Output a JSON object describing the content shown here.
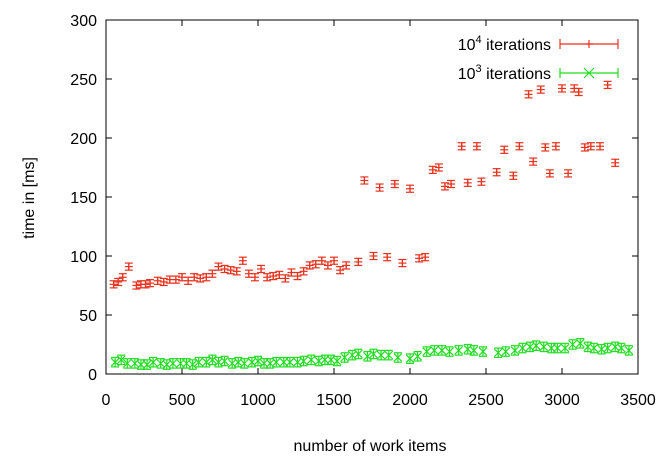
{
  "chart_data": {
    "type": "scatter",
    "xlabel": "number of work items",
    "ylabel": "time in [ms]",
    "xlim": [
      0,
      3500
    ],
    "ylim": [
      0,
      300
    ],
    "xticks": [
      0,
      500,
      1000,
      1500,
      2000,
      2500,
      3000,
      3500
    ],
    "yticks": [
      0,
      50,
      100,
      150,
      200,
      250,
      300
    ],
    "x_tick_labels": [
      "0",
      "500",
      "1000",
      "1500",
      "2000",
      "2500",
      "3000",
      "3500"
    ],
    "y_tick_labels": [
      "0",
      "50",
      "100",
      "150",
      "200",
      "250",
      "300"
    ],
    "grid": false,
    "legend_position": "top-right",
    "series": [
      {
        "name_base": "10",
        "name_exponent": "4",
        "name_suffix": " iterations",
        "color": "#e8321e",
        "marker": "plus",
        "error_bars": true,
        "points": [
          [
            50,
            76
          ],
          [
            80,
            78
          ],
          [
            110,
            82
          ],
          [
            150,
            91
          ],
          [
            200,
            75
          ],
          [
            230,
            76
          ],
          [
            260,
            76
          ],
          [
            290,
            77
          ],
          [
            340,
            79
          ],
          [
            380,
            78
          ],
          [
            420,
            80
          ],
          [
            460,
            80
          ],
          [
            500,
            82
          ],
          [
            540,
            79
          ],
          [
            580,
            82
          ],
          [
            620,
            81
          ],
          [
            660,
            82
          ],
          [
            700,
            85
          ],
          [
            740,
            91
          ],
          [
            780,
            89
          ],
          [
            820,
            88
          ],
          [
            860,
            87
          ],
          [
            900,
            96
          ],
          [
            940,
            85
          ],
          [
            980,
            82
          ],
          [
            1020,
            89
          ],
          [
            1060,
            82
          ],
          [
            1100,
            83
          ],
          [
            1140,
            84
          ],
          [
            1180,
            81
          ],
          [
            1220,
            86
          ],
          [
            1260,
            83
          ],
          [
            1300,
            87
          ],
          [
            1340,
            92
          ],
          [
            1380,
            93
          ],
          [
            1420,
            96
          ],
          [
            1460,
            92
          ],
          [
            1500,
            96
          ],
          [
            1540,
            88
          ],
          [
            1580,
            92
          ],
          [
            1660,
            95
          ],
          [
            1700,
            164
          ],
          [
            1760,
            100
          ],
          [
            1800,
            158
          ],
          [
            1850,
            99
          ],
          [
            1900,
            161
          ],
          [
            1950,
            94
          ],
          [
            2000,
            157
          ],
          [
            2060,
            98
          ],
          [
            2100,
            99
          ],
          [
            2150,
            173
          ],
          [
            2190,
            175
          ],
          [
            2230,
            159
          ],
          [
            2270,
            161
          ],
          [
            2340,
            193
          ],
          [
            2380,
            162
          ],
          [
            2440,
            193
          ],
          [
            2470,
            163
          ],
          [
            2570,
            171
          ],
          [
            2620,
            190
          ],
          [
            2680,
            168
          ],
          [
            2720,
            193
          ],
          [
            2780,
            237
          ],
          [
            2810,
            180
          ],
          [
            2860,
            241
          ],
          [
            2890,
            192
          ],
          [
            2920,
            170
          ],
          [
            2960,
            193
          ],
          [
            3000,
            242
          ],
          [
            3040,
            170
          ],
          [
            3080,
            242
          ],
          [
            3110,
            239
          ],
          [
            3150,
            192
          ],
          [
            3190,
            193
          ],
          [
            3250,
            193
          ],
          [
            3300,
            245
          ],
          [
            3350,
            179
          ]
        ],
        "error": 3
      },
      {
        "name_base": "10",
        "name_exponent": "3",
        "name_suffix": " iterations",
        "color": "#22dd22",
        "marker": "cross",
        "error_bars": true,
        "points": [
          [
            60,
            10
          ],
          [
            100,
            12
          ],
          [
            140,
            9
          ],
          [
            190,
            9
          ],
          [
            230,
            8
          ],
          [
            270,
            8
          ],
          [
            310,
            10
          ],
          [
            360,
            9
          ],
          [
            400,
            8
          ],
          [
            440,
            9
          ],
          [
            490,
            9
          ],
          [
            530,
            9
          ],
          [
            570,
            8
          ],
          [
            610,
            10
          ],
          [
            660,
            10
          ],
          [
            700,
            12
          ],
          [
            740,
            10
          ],
          [
            780,
            11
          ],
          [
            830,
            9
          ],
          [
            870,
            10
          ],
          [
            910,
            9
          ],
          [
            960,
            10
          ],
          [
            1000,
            11
          ],
          [
            1040,
            9
          ],
          [
            1080,
            9
          ],
          [
            1120,
            10
          ],
          [
            1170,
            10
          ],
          [
            1210,
            10
          ],
          [
            1260,
            10
          ],
          [
            1300,
            11
          ],
          [
            1350,
            12
          ],
          [
            1400,
            11
          ],
          [
            1440,
            12
          ],
          [
            1480,
            12
          ],
          [
            1520,
            11
          ],
          [
            1570,
            14
          ],
          [
            1620,
            16
          ],
          [
            1660,
            17
          ],
          [
            1720,
            15
          ],
          [
            1760,
            17
          ],
          [
            1810,
            16
          ],
          [
            1860,
            16
          ],
          [
            1920,
            14
          ],
          [
            2000,
            13
          ],
          [
            2050,
            15
          ],
          [
            2110,
            19
          ],
          [
            2160,
            20
          ],
          [
            2210,
            20
          ],
          [
            2260,
            19
          ],
          [
            2320,
            20
          ],
          [
            2380,
            21
          ],
          [
            2420,
            20
          ],
          [
            2480,
            19
          ],
          [
            2580,
            18
          ],
          [
            2630,
            19
          ],
          [
            2690,
            20
          ],
          [
            2740,
            22
          ],
          [
            2790,
            23
          ],
          [
            2830,
            24
          ],
          [
            2880,
            23
          ],
          [
            2930,
            22
          ],
          [
            2970,
            22
          ],
          [
            3020,
            22
          ],
          [
            3070,
            25
          ],
          [
            3120,
            26
          ],
          [
            3170,
            23
          ],
          [
            3210,
            22
          ],
          [
            3260,
            21
          ],
          [
            3300,
            22
          ],
          [
            3350,
            23
          ],
          [
            3390,
            22
          ],
          [
            3440,
            20
          ]
        ],
        "error": 4
      }
    ]
  }
}
